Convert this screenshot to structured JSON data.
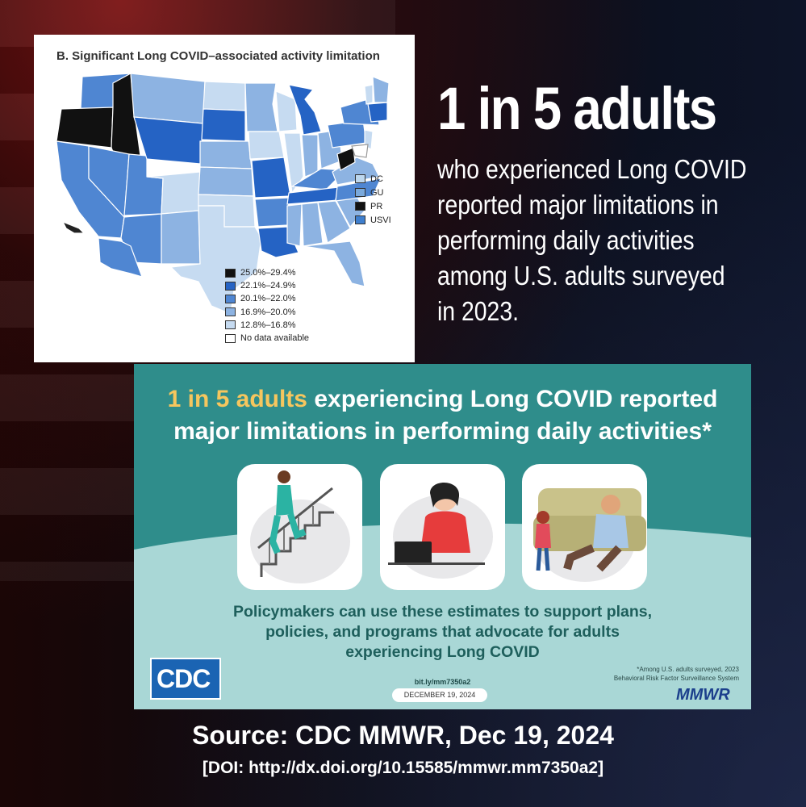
{
  "map": {
    "title": "B. Significant Long COVID–associated activity limitation",
    "territories": [
      {
        "label": "DC",
        "color": "#bdd7ee"
      },
      {
        "label": "GU",
        "color": "#7aa9dc"
      },
      {
        "label": "PR",
        "color": "#111111"
      },
      {
        "label": "USVI",
        "color": "#3f7fce"
      }
    ],
    "legend": [
      {
        "label": "25.0%–29.4%",
        "color": "#111111"
      },
      {
        "label": "22.1%–24.9%",
        "color": "#2563c4"
      },
      {
        "label": "20.1%–22.0%",
        "color": "#4f86d2"
      },
      {
        "label": "16.9%–20.0%",
        "color": "#8db3e2"
      },
      {
        "label": "12.8%–16.8%",
        "color": "#c6dbf1"
      },
      {
        "label": "No data available",
        "color": "#ffffff"
      }
    ]
  },
  "headline": "1 in 5 adults",
  "subtext": [
    "who experienced Long COVID",
    "reported major limitations in",
    "performing daily activities",
    "among U.S. adults surveyed",
    "in 2023."
  ],
  "card": {
    "title_highlight": "1 in 5 adults",
    "title_rest_1": " experiencing Long COVID reported",
    "title_line_2": "major limitations in performing daily activities*",
    "body": [
      "Policymakers can use these estimates to support plans,",
      "policies, and programs that advocate for adults",
      "experiencing Long COVID"
    ],
    "logo": "CDC",
    "link": "bit.ly/mm7350a2",
    "date": "DECEMBER 19, 2024",
    "footnote_1": "*Among U.S. adults surveyed, 2023",
    "footnote_2": "Behavioral Risk Factor Surveillance System",
    "mmwr": "MMWR"
  },
  "source": "Source: CDC MMWR, Dec 19, 2024",
  "doi": "[DOI: http://dx.doi.org/10.15585/mmwr.mm7350a2]"
}
